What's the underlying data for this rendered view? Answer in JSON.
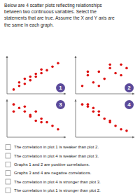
{
  "title": "Below are 4 scatter plots reflecting relationships\nbetween two continuous variables. Select the\nstatements that are true. Assume the X and Y axis are\nthe same in each graph.",
  "annotations": [
    "The correlation in plot 1 is weaker than plot 2.",
    "The correlation in plot 4 is weaker than plot 3.",
    "Graphs 1 and 2 are positive correlations.",
    "Graphs 3 and 4 are negative correlations.",
    "The correlation in plot 4 is stronger than plot 3.",
    "The correlation in plot 1 is stronger than plot 2."
  ],
  "chart_data": [
    {
      "type": "scatter",
      "title": "1",
      "color": "#dd1111",
      "x": [
        0.5,
        1,
        1.5,
        2,
        2.5,
        3,
        3.5,
        4,
        4.5,
        1,
        1.5,
        2,
        2.5,
        3
      ],
      "values": [
        0.5,
        1,
        1.3,
        1.8,
        2.3,
        2.8,
        3.2,
        3.7,
        4.2,
        1.5,
        2,
        2.3,
        2.7,
        3.3
      ],
      "xlim": [
        -0.1,
        5.2
      ],
      "ylim": [
        -0.1,
        5.2
      ],
      "xticks": [],
      "yticks": [],
      "tick_labels": false,
      "grid": false
    },
    {
      "type": "scatter",
      "title": "2",
      "color": "#dd1111",
      "x": [
        0.5,
        1,
        1.5,
        2,
        2.5,
        3,
        3.5,
        4,
        4.5,
        1,
        2,
        3,
        4
      ],
      "values": [
        1,
        2.5,
        1.5,
        3,
        2,
        3.5,
        2.8,
        4,
        3.5,
        3,
        1,
        4,
        2.5
      ],
      "xlim": [
        -0.1,
        5.2
      ],
      "ylim": [
        -0.1,
        5.2
      ],
      "xticks": [],
      "yticks": [],
      "tick_labels": false,
      "grid": false
    },
    {
      "type": "scatter",
      "title": "3",
      "color": "#dd1111",
      "x": [
        0.5,
        1,
        1.5,
        2,
        2.5,
        3,
        3.5,
        4,
        4.5,
        1.5,
        2,
        3,
        0.5,
        2.5
      ],
      "values": [
        4.5,
        4,
        4.2,
        3,
        3.5,
        2.5,
        2,
        1.5,
        1,
        3.5,
        2.8,
        2,
        3.5,
        2.2
      ],
      "xlim": [
        -0.1,
        5.2
      ],
      "ylim": [
        -0.1,
        5.2
      ],
      "xticks": [],
      "yticks": [],
      "tick_labels": false,
      "grid": false
    },
    {
      "type": "scatter",
      "title": "4",
      "color": "#dd1111",
      "x": [
        0.5,
        1,
        1.5,
        2,
        2.5,
        3,
        3.5,
        4,
        4.5,
        1,
        1.5,
        2,
        3
      ],
      "values": [
        4.5,
        4.2,
        3.5,
        3,
        2.5,
        2,
        1.5,
        1,
        0.8,
        4.5,
        4,
        3.5,
        2.2
      ],
      "xlim": [
        -0.1,
        5.2
      ],
      "ylim": [
        -0.1,
        5.2
      ],
      "xticks": [],
      "yticks": [],
      "tick_labels": false,
      "grid": false
    }
  ]
}
